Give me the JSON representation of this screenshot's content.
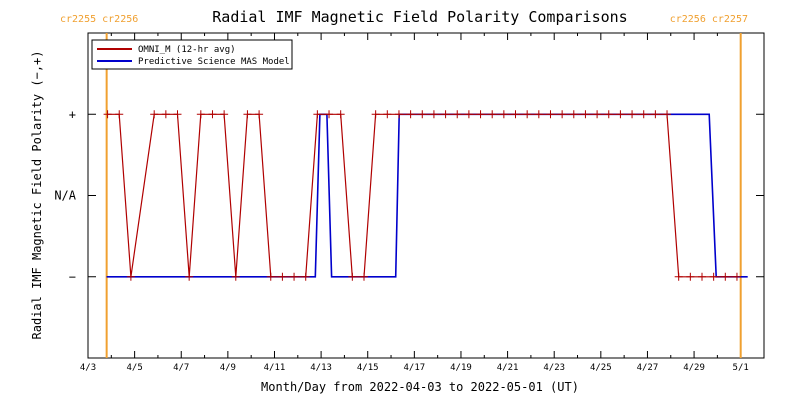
{
  "chart_data": {
    "type": "line",
    "title": "Radial IMF Magnetic Field Polarity Comparisons",
    "xlabel": "Month/Day from 2022-04-03 to 2022-05-01 (UT)",
    "ylabel": "Radial IMF Magnetic Field Polarity (−,+)",
    "x_ticks": [
      "4/3",
      "4/5",
      "4/7",
      "4/9",
      "4/11",
      "4/13",
      "4/15",
      "4/17",
      "4/19",
      "4/21",
      "4/23",
      "4/25",
      "4/27",
      "4/29",
      "5/1"
    ],
    "y_ticks": [
      {
        "value": 1,
        "label": "+"
      },
      {
        "value": 0,
        "label": "N/A"
      },
      {
        "value": -1,
        "label": "−"
      }
    ],
    "xlim": [
      0,
      29
    ],
    "ylim": [
      -2,
      2
    ],
    "carrington_markers": [
      {
        "x": 0.8,
        "label": "cr2255 cr2256",
        "side": "left"
      },
      {
        "x": 28.0,
        "label": "cr2256 cr2257",
        "side": "right"
      }
    ],
    "legend_placement": "top-left",
    "series": [
      {
        "name": "OMNI_M (12-hr avg)",
        "color": "#b00000",
        "markers": true,
        "x": [
          0.84,
          1.34,
          1.84,
          2.84,
          3.34,
          3.84,
          4.34,
          4.84,
          5.34,
          5.84,
          6.34,
          6.84,
          7.34,
          7.84,
          8.34,
          8.84,
          9.34,
          9.84,
          10.34,
          10.84,
          11.34,
          11.84,
          12.34,
          12.84,
          13.34,
          13.84,
          14.34,
          14.84,
          15.34,
          15.84,
          16.34,
          16.84,
          17.34,
          17.84,
          18.34,
          18.84,
          19.34,
          19.84,
          20.34,
          20.84,
          21.34,
          21.84,
          22.34,
          22.84,
          23.34,
          23.84,
          24.34,
          24.84,
          25.34,
          25.84,
          26.34,
          26.84,
          27.34,
          27.84
        ],
        "y": [
          1,
          1,
          -1,
          1,
          1,
          1,
          -1,
          1,
          1,
          1,
          -1,
          1,
          1,
          -1,
          -1,
          -1,
          -1,
          1,
          1,
          1,
          -1,
          -1,
          1,
          1,
          1,
          1,
          1,
          1,
          1,
          1,
          1,
          1,
          1,
          1,
          1,
          1,
          1,
          1,
          1,
          1,
          1,
          1,
          1,
          1,
          1,
          1,
          1,
          1,
          -1,
          -1,
          -1,
          -1,
          -1,
          -1
        ]
      },
      {
        "name": "Predictive Science MAS Model",
        "color": "#0000cc",
        "markers": false,
        "x": [
          0.8,
          9.75,
          9.95,
          10.25,
          10.45,
          13.2,
          13.35,
          26.65,
          26.95,
          28.3
        ],
        "y": [
          -1,
          -1,
          1,
          1,
          -1,
          -1,
          1,
          1,
          -1,
          -1
        ]
      }
    ]
  }
}
